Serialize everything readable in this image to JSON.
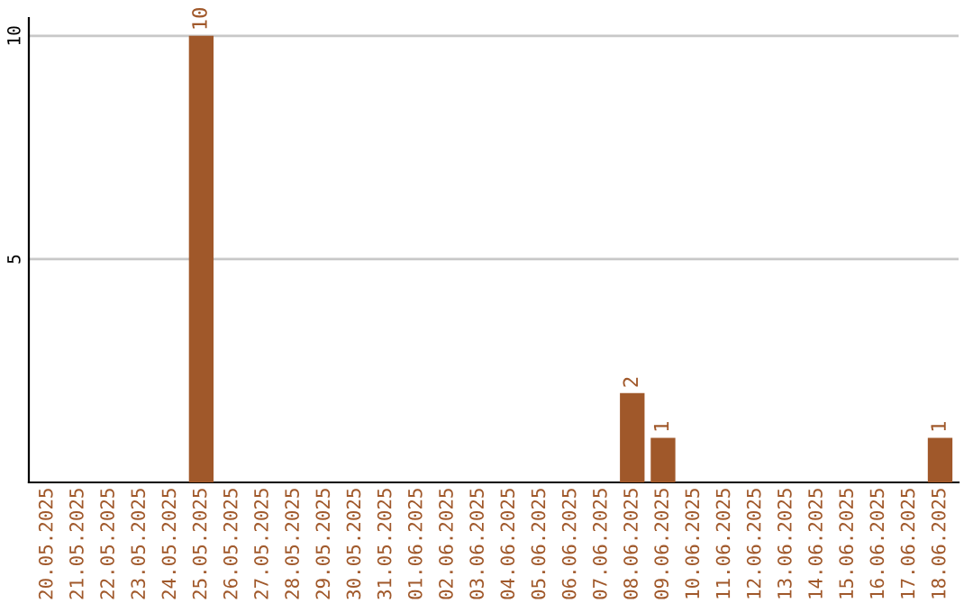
{
  "chart_data": {
    "type": "bar",
    "categories": [
      "20.05.2025",
      "21.05.2025",
      "22.05.2025",
      "23.05.2025",
      "24.05.2025",
      "25.05.2025",
      "26.05.2025",
      "27.05.2025",
      "28.05.2025",
      "29.05.2025",
      "30.05.2025",
      "31.05.2025",
      "01.06.2025",
      "02.06.2025",
      "03.06.2025",
      "04.06.2025",
      "05.06.2025",
      "06.06.2025",
      "07.06.2025",
      "08.06.2025",
      "09.06.2025",
      "10.06.2025",
      "11.06.2025",
      "12.06.2025",
      "13.06.2025",
      "14.06.2025",
      "15.06.2025",
      "16.06.2025",
      "17.06.2025",
      "18.06.2025"
    ],
    "values": [
      0,
      0,
      0,
      0,
      0,
      10,
      0,
      0,
      0,
      0,
      0,
      0,
      0,
      0,
      0,
      0,
      0,
      0,
      0,
      2,
      1,
      0,
      0,
      0,
      0,
      0,
      0,
      0,
      0,
      1
    ],
    "value_labels": [
      null,
      null,
      null,
      null,
      null,
      "10",
      null,
      null,
      null,
      null,
      null,
      null,
      null,
      null,
      null,
      null,
      null,
      null,
      null,
      "2",
      "1",
      null,
      null,
      null,
      null,
      null,
      null,
      null,
      null,
      "1"
    ],
    "color": "#a0582a",
    "ylim": [
      0,
      10.4
    ],
    "yticks": [
      5,
      10
    ],
    "grid": "y"
  }
}
